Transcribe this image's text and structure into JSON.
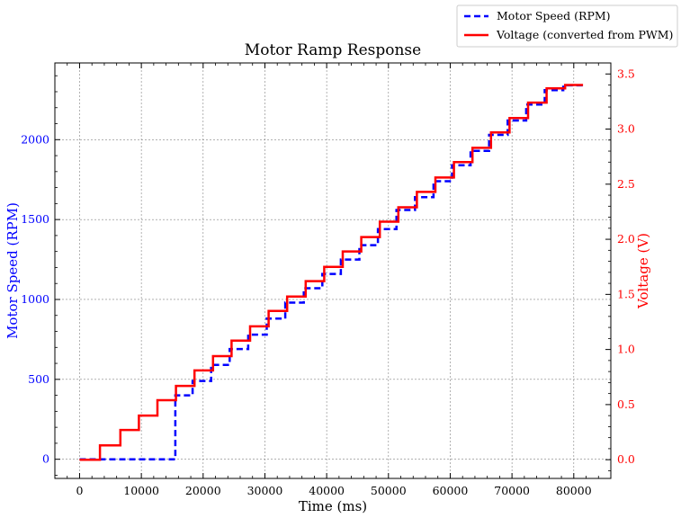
{
  "chart_data": {
    "type": "line",
    "title": "Motor Ramp Response",
    "xlabel": "Time (ms)",
    "ylabel_left": "Motor Speed (RPM)",
    "ylabel_right": "Voltage (V)",
    "xlim": [
      -4000,
      86000
    ],
    "ylim_left": [
      -120,
      2480
    ],
    "ylim_right": [
      -0.17,
      3.6
    ],
    "x_ticks": [
      0,
      10000,
      20000,
      30000,
      40000,
      50000,
      60000,
      70000,
      80000
    ],
    "x_tick_labels": [
      "0",
      "10000",
      "20000",
      "30000",
      "40000",
      "50000",
      "60000",
      "70000",
      "80000"
    ],
    "y_left_ticks": [
      0,
      500,
      1000,
      1500,
      2000
    ],
    "y_left_tick_labels": [
      "0",
      "500",
      "1000",
      "1500",
      "2000"
    ],
    "y_right_ticks": [
      0.0,
      0.5,
      1.0,
      1.5,
      2.0,
      2.5,
      3.0,
      3.5
    ],
    "y_right_tick_labels": [
      "0.0",
      "0.5",
      "1.0",
      "1.5",
      "2.0",
      "2.5",
      "3.0",
      "3.5"
    ],
    "grid": true,
    "legend_position": "top-right, outside plot",
    "colors": {
      "speed": "#0000ff",
      "voltage": "#ff0000",
      "grid": "#808080",
      "axes": "#000000"
    },
    "series": [
      {
        "name": "Motor Speed (RPM)",
        "axis": "left",
        "style": "dashed",
        "x": [
          0,
          15500,
          15500,
          18300,
          18300,
          21300,
          21300,
          24300,
          24300,
          27300,
          27300,
          30300,
          30300,
          33300,
          33300,
          36300,
          36300,
          39300,
          39300,
          42300,
          42300,
          45300,
          45300,
          48300,
          48300,
          51300,
          51300,
          54300,
          54300,
          57300,
          57300,
          60300,
          60300,
          63300,
          63300,
          66300,
          66300,
          69300,
          69300,
          72300,
          72300,
          75300,
          75300,
          78300,
          78300,
          81500
        ],
        "y": [
          0,
          0,
          400,
          400,
          490,
          490,
          590,
          590,
          690,
          690,
          780,
          780,
          880,
          880,
          980,
          980,
          1070,
          1070,
          1160,
          1160,
          1250,
          1250,
          1340,
          1340,
          1440,
          1440,
          1560,
          1560,
          1640,
          1640,
          1740,
          1740,
          1840,
          1840,
          1930,
          1930,
          2030,
          2030,
          2120,
          2120,
          2220,
          2220,
          2310,
          2310,
          2340,
          2340
        ]
      },
      {
        "name": "Voltage (converted from PWM)",
        "axis": "right",
        "style": "solid",
        "x": [
          0,
          3300,
          3300,
          6600,
          6600,
          9600,
          9600,
          12600,
          12600,
          15600,
          15600,
          18600,
          18600,
          21600,
          21600,
          24600,
          24600,
          27600,
          27600,
          30600,
          30600,
          33600,
          33600,
          36600,
          36600,
          39600,
          39600,
          42600,
          42600,
          45600,
          45600,
          48600,
          48600,
          51600,
          51600,
          54600,
          54600,
          57600,
          57600,
          60600,
          60600,
          63600,
          63600,
          66600,
          66600,
          69600,
          69600,
          72600,
          72600,
          75600,
          75600,
          78600,
          78600,
          81500
        ],
        "y": [
          0,
          0,
          0.13,
          0.13,
          0.27,
          0.27,
          0.4,
          0.4,
          0.54,
          0.54,
          0.67,
          0.67,
          0.81,
          0.81,
          0.94,
          0.94,
          1.08,
          1.08,
          1.21,
          1.21,
          1.35,
          1.35,
          1.48,
          1.48,
          1.62,
          1.62,
          1.75,
          1.75,
          1.89,
          1.89,
          2.02,
          2.02,
          2.16,
          2.16,
          2.29,
          2.29,
          2.43,
          2.43,
          2.56,
          2.56,
          2.7,
          2.7,
          2.83,
          2.83,
          2.97,
          2.97,
          3.1,
          3.1,
          3.24,
          3.24,
          3.37,
          3.37,
          3.4,
          3.4
        ]
      }
    ]
  }
}
